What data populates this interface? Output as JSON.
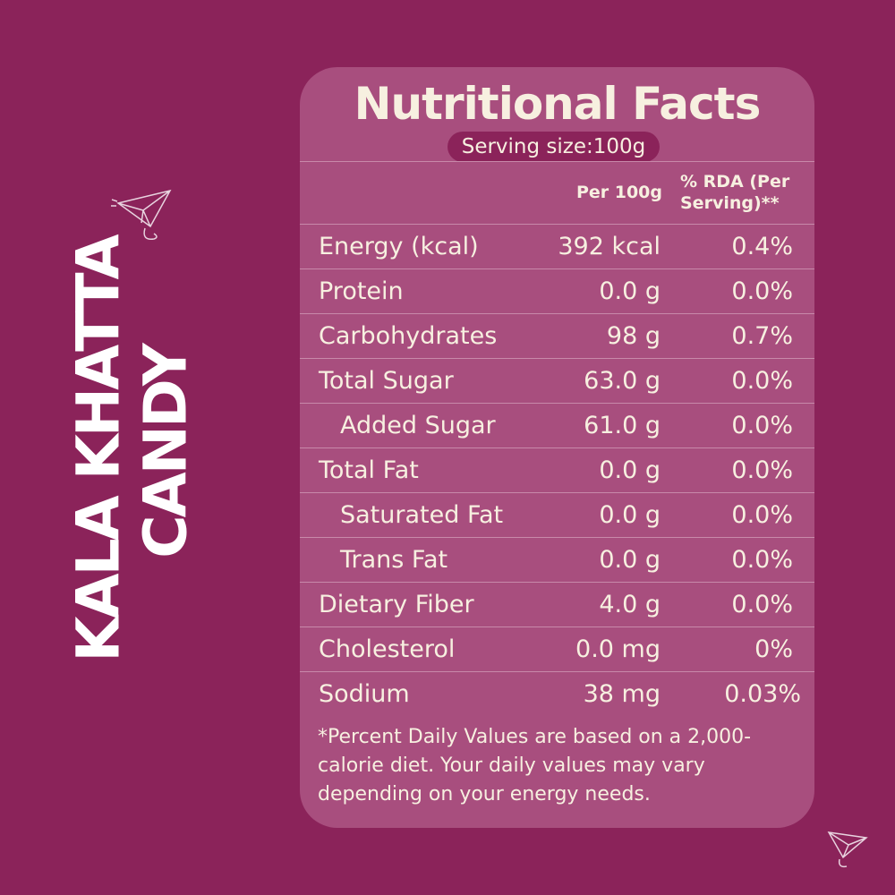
{
  "brand": {
    "lines": [
      "KALA KHATTA",
      "CANDY"
    ]
  },
  "panel": {
    "title": "Nutritional Facts",
    "serving_size": "Serving size:100g",
    "header": {
      "per_100g": "Per 100g",
      "rda": "% RDA (Per Serving)**"
    },
    "rows": [
      {
        "label": "Energy (kcal)",
        "per_100g": "392 kcal",
        "rda": "0.4%"
      },
      {
        "label": "Protein",
        "per_100g": "0.0 g",
        "rda": "0.0%"
      },
      {
        "label": "Carbohydrates",
        "per_100g": "98 g",
        "rda": "0.7%"
      },
      {
        "label": "Total Sugar",
        "per_100g": "63.0 g",
        "rda": "0.0%"
      },
      {
        "label": "Added Sugar",
        "per_100g": "61.0 g",
        "rda": "0.0%",
        "indent": true
      },
      {
        "label": "Total Fat",
        "per_100g": "0.0 g",
        "rda": "0.0%"
      },
      {
        "label": "Saturated Fat",
        "per_100g": "0.0 g",
        "rda": "0.0%",
        "indent": true
      },
      {
        "label": "Trans Fat",
        "per_100g": "0.0 g",
        "rda": "0.0%",
        "indent": true
      },
      {
        "label": "Dietary Fiber",
        "per_100g": "4.0 g",
        "rda": "0.0%"
      },
      {
        "label": "Cholesterol",
        "per_100g": "0.0 mg",
        "rda": "0%"
      },
      {
        "label": "Sodium",
        "per_100g": "38 mg",
        "rda": "0.03%"
      }
    ],
    "footnote": "*Percent Daily Values are based on a 2,000-calorie diet. Your daily values may vary depending on your energy needs."
  }
}
